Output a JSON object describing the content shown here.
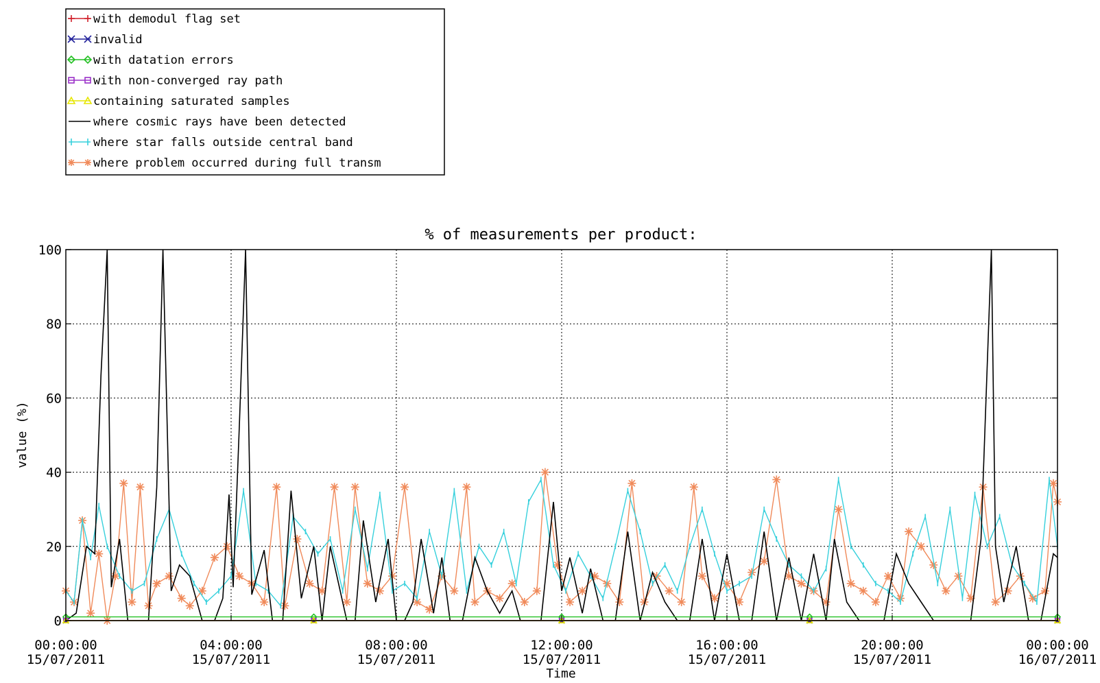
{
  "legend": [
    {
      "label": "with demodul flag set",
      "color": "#d0202a",
      "marker": "plus"
    },
    {
      "label": "invalid",
      "color": "#20209a",
      "marker": "cross"
    },
    {
      "label": "with datation errors",
      "color": "#22c022",
      "marker": "diamond"
    },
    {
      "label": "with non-converged ray path",
      "color": "#9a30c8",
      "marker": "square"
    },
    {
      "label": "containing saturated samples",
      "color": "#e6e600",
      "marker": "triangle"
    },
    {
      "label": "where cosmic rays have been detected",
      "color": "#000000",
      "marker": "none"
    },
    {
      "label": "where star falls outside central band",
      "color": "#36d0dc",
      "marker": "bar"
    },
    {
      "label": "where problem occurred during full transm",
      "color": "#f08a5a",
      "marker": "asterisk"
    }
  ],
  "chart_data": {
    "type": "line",
    "title": "% of measurements per product:",
    "xlabel": "Time",
    "ylabel": "value (%)",
    "xlim": [
      "15/07/2011 00:00",
      "16/07/2011 00:00"
    ],
    "ylim": [
      0,
      100
    ],
    "grid": true,
    "legend_position": "top-left",
    "x_ticks": [
      {
        "time": "00:00:00",
        "date": "15/07/2011"
      },
      {
        "time": "04:00:00",
        "date": "15/07/2011"
      },
      {
        "time": "08:00:00",
        "date": "15/07/2011"
      },
      {
        "time": "12:00:00",
        "date": "15/07/2011"
      },
      {
        "time": "16:00:00",
        "date": "15/07/2011"
      },
      {
        "time": "20:00:00",
        "date": "15/07/2011"
      },
      {
        "time": "00:00:00",
        "date": "16/07/2011"
      }
    ],
    "y_ticks": [
      "0",
      "20",
      "40",
      "60",
      "80",
      "100"
    ],
    "series": [
      {
        "name": "with demodul flag set",
        "color": "#d0202a",
        "marker": "plus",
        "x_hours": [
          0,
          6,
          12,
          18,
          24
        ],
        "values": [
          0,
          0,
          0,
          0,
          0
        ]
      },
      {
        "name": "invalid",
        "color": "#20209a",
        "marker": "cross",
        "x_hours": [
          0,
          6,
          12,
          18,
          24
        ],
        "values": [
          0,
          0,
          0,
          0,
          0
        ]
      },
      {
        "name": "with datation errors",
        "color": "#22c022",
        "marker": "diamond",
        "x_hours": [
          0,
          6,
          12,
          18,
          24
        ],
        "values": [
          1,
          1,
          1,
          1,
          1
        ]
      },
      {
        "name": "with non-converged ray path",
        "color": "#9a30c8",
        "marker": "square",
        "x_hours": [
          0,
          6,
          12,
          18,
          24
        ],
        "values": [
          0,
          0,
          0,
          0,
          0
        ]
      },
      {
        "name": "containing saturated samples",
        "color": "#e6e600",
        "marker": "triangle",
        "x_hours": [
          0,
          6,
          12,
          18,
          24
        ],
        "values": [
          0,
          0,
          0,
          0,
          0
        ]
      },
      {
        "name": "where cosmic rays have been detected",
        "color": "#000000",
        "marker": "none",
        "x_hours": [
          0.0,
          0.25,
          0.5,
          0.7,
          0.85,
          1.0,
          1.1,
          1.3,
          1.5,
          1.8,
          2.0,
          2.2,
          2.35,
          2.55,
          2.75,
          3.0,
          3.3,
          3.6,
          3.8,
          3.95,
          4.05,
          4.2,
          4.35,
          4.5,
          4.8,
          5.0,
          5.25,
          5.45,
          5.7,
          6.0,
          6.2,
          6.4,
          6.8,
          7.0,
          7.2,
          7.5,
          7.8,
          8.0,
          8.2,
          8.4,
          8.6,
          8.9,
          9.1,
          9.3,
          9.6,
          9.9,
          10.2,
          10.5,
          10.8,
          11.0,
          11.2,
          11.5,
          11.8,
          12.0,
          12.2,
          12.5,
          12.7,
          13.0,
          13.3,
          13.6,
          13.9,
          14.2,
          14.5,
          14.8,
          15.1,
          15.4,
          15.7,
          16.0,
          16.3,
          16.6,
          16.9,
          17.2,
          17.5,
          17.8,
          18.1,
          18.4,
          18.6,
          18.9,
          19.2,
          19.5,
          19.8,
          20.1,
          20.4,
          20.7,
          21.0,
          21.3,
          21.6,
          21.9,
          22.15,
          22.4,
          22.5,
          22.7,
          23.0,
          23.3,
          23.6,
          23.9,
          24.0
        ],
        "values": [
          0,
          2,
          20,
          18,
          66,
          100,
          9,
          22,
          0,
          0,
          0,
          36,
          100,
          8,
          15,
          12,
          0,
          0,
          6,
          34,
          9,
          53,
          100,
          7,
          19,
          0,
          0,
          35,
          6,
          20,
          0,
          20,
          0,
          0,
          27,
          5,
          22,
          0,
          0,
          5,
          22,
          2,
          17,
          0,
          0,
          17,
          8,
          2,
          8,
          0,
          0,
          0,
          32,
          8,
          17,
          2,
          14,
          0,
          0,
          24,
          0,
          13,
          5,
          0,
          0,
          22,
          0,
          18,
          0,
          0,
          24,
          0,
          17,
          0,
          18,
          0,
          22,
          5,
          0,
          0,
          0,
          18,
          10,
          5,
          0,
          0,
          0,
          0,
          22,
          100,
          20,
          5,
          20,
          0,
          0,
          18,
          17
        ]
      },
      {
        "name": "where star falls outside central band",
        "color": "#36d0dc",
        "marker": "bar",
        "x_hours": [
          0.0,
          0.2,
          0.4,
          0.6,
          0.8,
          1.0,
          1.3,
          1.6,
          1.9,
          2.2,
          2.5,
          2.8,
          3.1,
          3.4,
          3.7,
          4.0,
          4.3,
          4.6,
          4.9,
          5.2,
          5.5,
          5.8,
          6.1,
          6.4,
          6.7,
          7.0,
          7.3,
          7.6,
          7.9,
          8.2,
          8.5,
          8.8,
          9.1,
          9.4,
          9.7,
          10.0,
          10.3,
          10.6,
          10.9,
          11.2,
          11.5,
          11.8,
          12.1,
          12.4,
          12.7,
          13.0,
          13.3,
          13.6,
          13.9,
          14.2,
          14.5,
          14.8,
          15.1,
          15.4,
          15.7,
          16.0,
          16.3,
          16.6,
          16.9,
          17.2,
          17.5,
          17.8,
          18.1,
          18.4,
          18.7,
          19.0,
          19.3,
          19.6,
          19.9,
          20.2,
          20.5,
          20.8,
          21.1,
          21.4,
          21.7,
          22.0,
          22.3,
          22.6,
          22.9,
          23.2,
          23.5,
          23.8,
          24.0
        ],
        "values": [
          8,
          5,
          27,
          17,
          31,
          20,
          12,
          8,
          10,
          22,
          30,
          18,
          10,
          5,
          8,
          12,
          35,
          10,
          8,
          4,
          28,
          24,
          18,
          22,
          8,
          30,
          14,
          34,
          8,
          10,
          6,
          24,
          12,
          35,
          8,
          20,
          15,
          24,
          10,
          32,
          38,
          15,
          8,
          18,
          12,
          6,
          20,
          35,
          24,
          10,
          15,
          8,
          20,
          30,
          18,
          8,
          10,
          12,
          30,
          22,
          15,
          12,
          8,
          14,
          38,
          20,
          15,
          10,
          8,
          5,
          18,
          28,
          10,
          30,
          6,
          34,
          20,
          28,
          15,
          10,
          5,
          38,
          20
        ]
      },
      {
        "name": "where problem occurred during full transm",
        "color": "#f08a5a",
        "marker": "asterisk",
        "x_hours": [
          0.0,
          0.2,
          0.4,
          0.6,
          0.8,
          1.0,
          1.2,
          1.4,
          1.6,
          1.8,
          2.0,
          2.2,
          2.5,
          2.8,
          3.0,
          3.3,
          3.6,
          3.9,
          4.2,
          4.5,
          4.8,
          5.1,
          5.3,
          5.6,
          5.9,
          6.2,
          6.5,
          6.8,
          7.0,
          7.3,
          7.6,
          7.9,
          8.2,
          8.5,
          8.8,
          9.1,
          9.4,
          9.7,
          9.9,
          10.2,
          10.5,
          10.8,
          11.1,
          11.4,
          11.6,
          11.9,
          12.2,
          12.5,
          12.8,
          13.1,
          13.4,
          13.7,
          14.0,
          14.3,
          14.6,
          14.9,
          15.2,
          15.4,
          15.7,
          16.0,
          16.3,
          16.6,
          16.9,
          17.2,
          17.5,
          17.8,
          18.1,
          18.4,
          18.7,
          19.0,
          19.3,
          19.6,
          19.9,
          20.2,
          20.4,
          20.7,
          21.0,
          21.3,
          21.6,
          21.9,
          22.2,
          22.5,
          22.8,
          23.1,
          23.4,
          23.7,
          23.9,
          24.0
        ],
        "values": [
          8,
          5,
          27,
          2,
          18,
          0,
          12,
          37,
          5,
          36,
          4,
          10,
          12,
          6,
          4,
          8,
          17,
          20,
          12,
          10,
          5,
          36,
          4,
          22,
          10,
          8,
          36,
          5,
          36,
          10,
          8,
          12,
          36,
          5,
          3,
          12,
          8,
          36,
          5,
          8,
          6,
          10,
          5,
          8,
          40,
          15,
          5,
          8,
          12,
          10,
          5,
          37,
          5,
          12,
          8,
          5,
          36,
          12,
          6,
          10,
          5,
          13,
          16,
          38,
          12,
          10,
          8,
          5,
          30,
          10,
          8,
          5,
          12,
          6,
          24,
          20,
          15,
          8,
          12,
          6,
          36,
          5,
          8,
          12,
          6,
          8,
          37,
          32
        ]
      }
    ]
  }
}
